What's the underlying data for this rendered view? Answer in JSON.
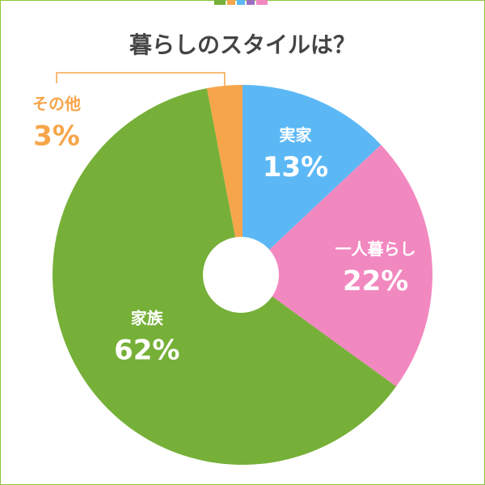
{
  "chart_data": {
    "type": "pie",
    "title": "暮らしのスタイルは？",
    "categories": [
      "実家",
      "一人暮らし",
      "家族",
      "その他"
    ],
    "values": [
      13,
      22,
      62,
      3
    ],
    "value_labels": [
      "13%",
      "22%",
      "62%",
      "3%"
    ],
    "colors": [
      "#5bb8f5",
      "#f288c0",
      "#76b038",
      "#f7a54a"
    ]
  }
}
